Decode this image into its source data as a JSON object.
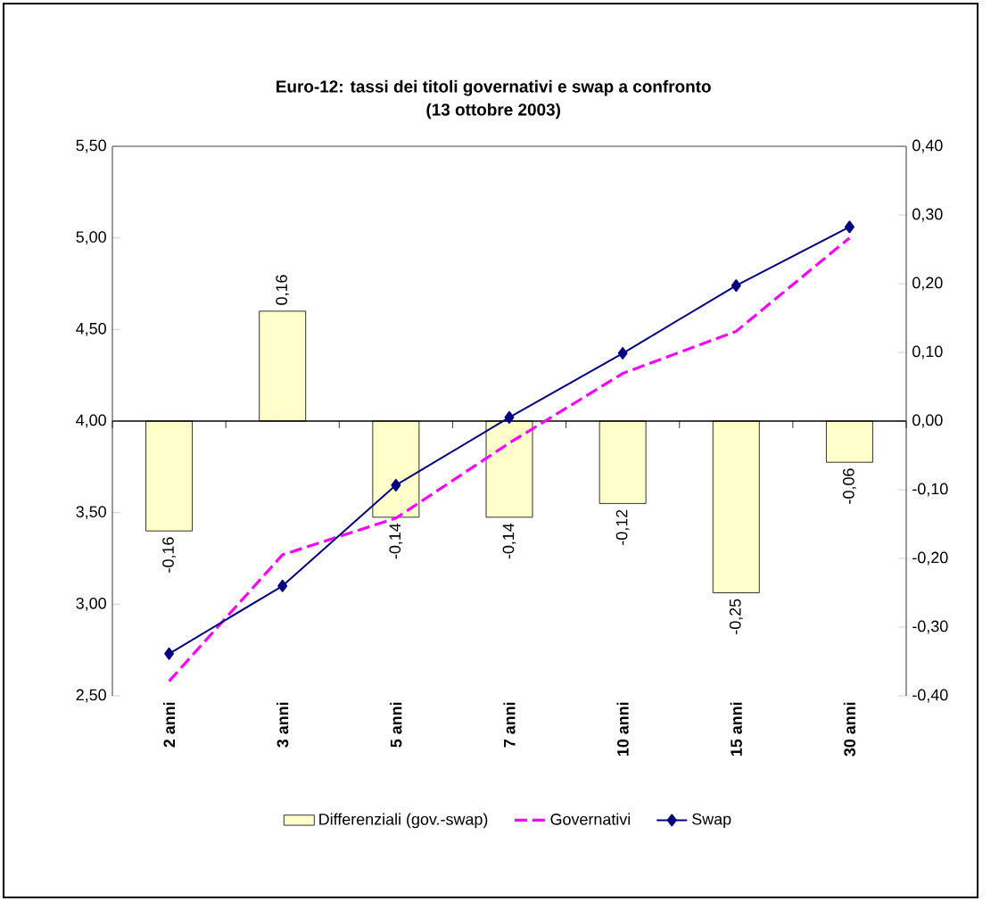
{
  "chart_data": {
    "type": "bar",
    "title": "Euro-12: tassi dei titoli governativi e swap a confronto",
    "subtitle": "(13 ottobre 2003)",
    "categories": [
      "2 anni",
      "3 anni",
      "5 anni",
      "7 anni",
      "10 anni",
      "15 anni",
      "30 anni"
    ],
    "series": [
      {
        "name": "Differenziali (gov.-swap)",
        "axis": "y2",
        "color": "#ffffcc",
        "values": [
          -0.16,
          0.16,
          -0.14,
          -0.14,
          -0.12,
          -0.25,
          -0.06
        ],
        "value_labels": [
          "-0,16",
          "0,16",
          "-0,14",
          "-0,14",
          "-0,12",
          "-0,25",
          "-0,06"
        ]
      },
      {
        "name": "Governativi",
        "type": "line",
        "color": "#ff00ff",
        "line_style": "dashed",
        "marker": "none",
        "values": [
          2.58,
          3.27,
          3.47,
          3.88,
          4.26,
          4.49,
          5.0
        ]
      },
      {
        "name": "Swap",
        "type": "line",
        "color": "#000080",
        "line_style": "solid",
        "marker": "diamond",
        "values": [
          2.73,
          3.1,
          3.65,
          4.02,
          4.37,
          4.74,
          5.06
        ]
      }
    ],
    "ylim": [
      2.5,
      5.5
    ],
    "yticks": [
      {
        "value": 2.5,
        "label": "2,50"
      },
      {
        "value": 3.0,
        "label": "3,00"
      },
      {
        "value": 3.5,
        "label": "3,50"
      },
      {
        "value": 4.0,
        "label": "4,00"
      },
      {
        "value": 4.5,
        "label": "4,50"
      },
      {
        "value": 5.0,
        "label": "5,00"
      },
      {
        "value": 5.5,
        "label": "5,50"
      }
    ],
    "y2lim": [
      -0.4,
      0.4
    ],
    "y2ticks": [
      {
        "value": -0.4,
        "label": "-0,40"
      },
      {
        "value": -0.3,
        "label": "-0,30"
      },
      {
        "value": -0.2,
        "label": "-0,20"
      },
      {
        "value": -0.1,
        "label": "-0,10"
      },
      {
        "value": 0.0,
        "label": "0,00"
      },
      {
        "value": 0.1,
        "label": "0,10"
      },
      {
        "value": 0.2,
        "label": "0,20"
      },
      {
        "value": 0.3,
        "label": "0,30"
      },
      {
        "value": 0.4,
        "label": "0,40"
      }
    ],
    "legend": "bottom"
  }
}
